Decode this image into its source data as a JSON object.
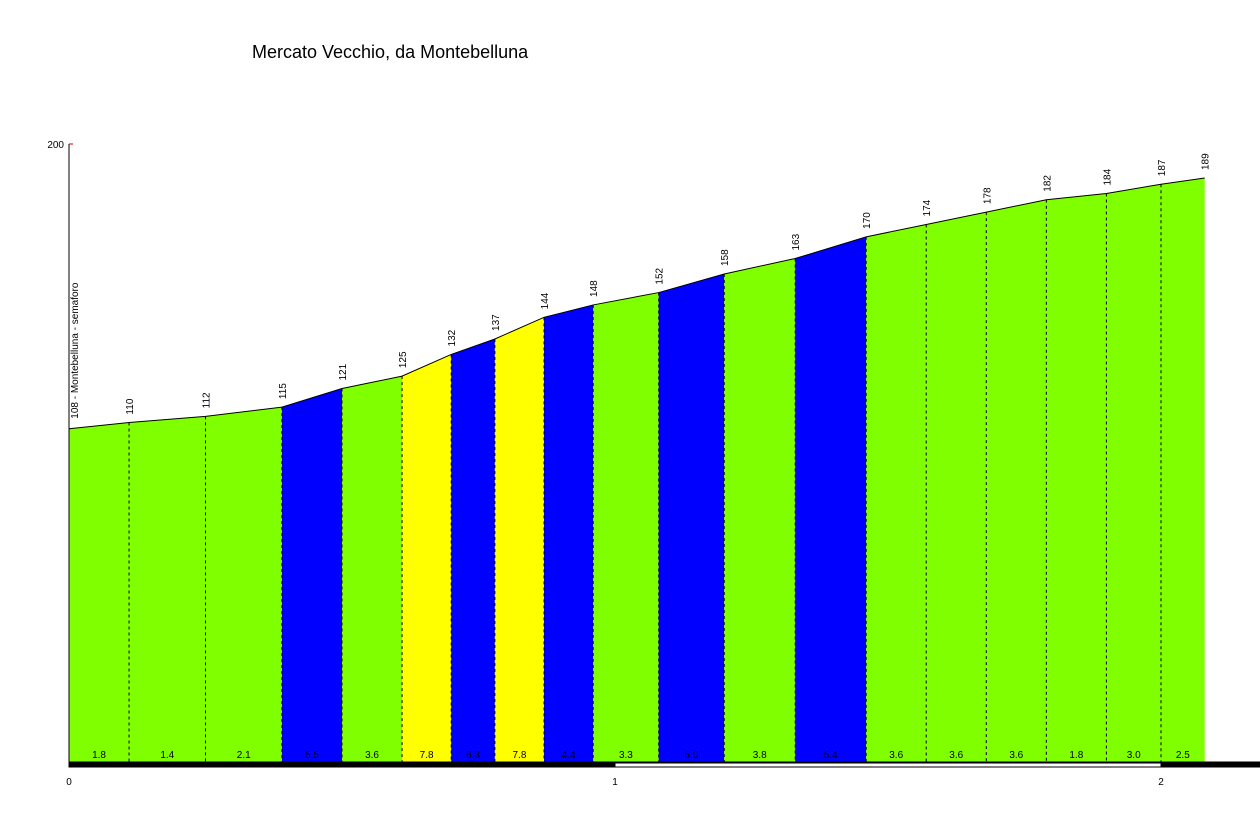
{
  "chart_data": {
    "type": "area",
    "title": "Mercato Vecchio, da Montebelluna",
    "ylim": [
      0,
      200
    ],
    "y_tick_labels": [
      "200"
    ],
    "xlim": [
      0,
      2.0
    ],
    "x_tick_labels": [
      "0",
      "1",
      "2"
    ],
    "x_tick_values": [
      0,
      1,
      2
    ],
    "start_label": "108 - Montebelluna - semaforo",
    "distances": [
      0,
      0.11,
      0.25,
      0.39,
      0.5,
      0.61,
      0.7,
      0.78,
      0.87,
      0.96,
      1.08,
      1.2,
      1.33,
      1.46,
      1.57,
      1.68,
      1.79,
      1.9,
      2.0,
      2.08
    ],
    "elevations": [
      108,
      110,
      112,
      115,
      121,
      125,
      132,
      137,
      144,
      148,
      152,
      158,
      163,
      170,
      174,
      178,
      182,
      184,
      187,
      189
    ],
    "elevation_labels": [
      "108",
      "110",
      "112",
      "115",
      "121",
      "125",
      "132",
      "137",
      "144",
      "148",
      "152",
      "158",
      "163",
      "170",
      "174",
      "178",
      "182",
      "184",
      "187",
      "189"
    ],
    "gradients": [
      "1.8",
      "1.4",
      "2.1",
      "5.5",
      "3.6",
      "7.8",
      "6.3",
      "7.8",
      "4.4",
      "3.3",
      "5.0",
      "3.8",
      "5.4",
      "3.6",
      "3.6",
      "3.6",
      "1.8",
      "3.0",
      "2.5"
    ],
    "segment_colors": [
      "#80ff00",
      "#80ff00",
      "#80ff00",
      "#0000ff",
      "#80ff00",
      "#ffff00",
      "#0000ff",
      "#ffff00",
      "#0000ff",
      "#80ff00",
      "#0000ff",
      "#80ff00",
      "#0000ff",
      "#80ff00",
      "#80ff00",
      "#80ff00",
      "#80ff00",
      "#80ff00",
      "#80ff00"
    ],
    "colors": {
      "green": "#80ff00",
      "blue": "#0000ff",
      "yellow": "#ffff00",
      "axis": "#000000"
    }
  }
}
